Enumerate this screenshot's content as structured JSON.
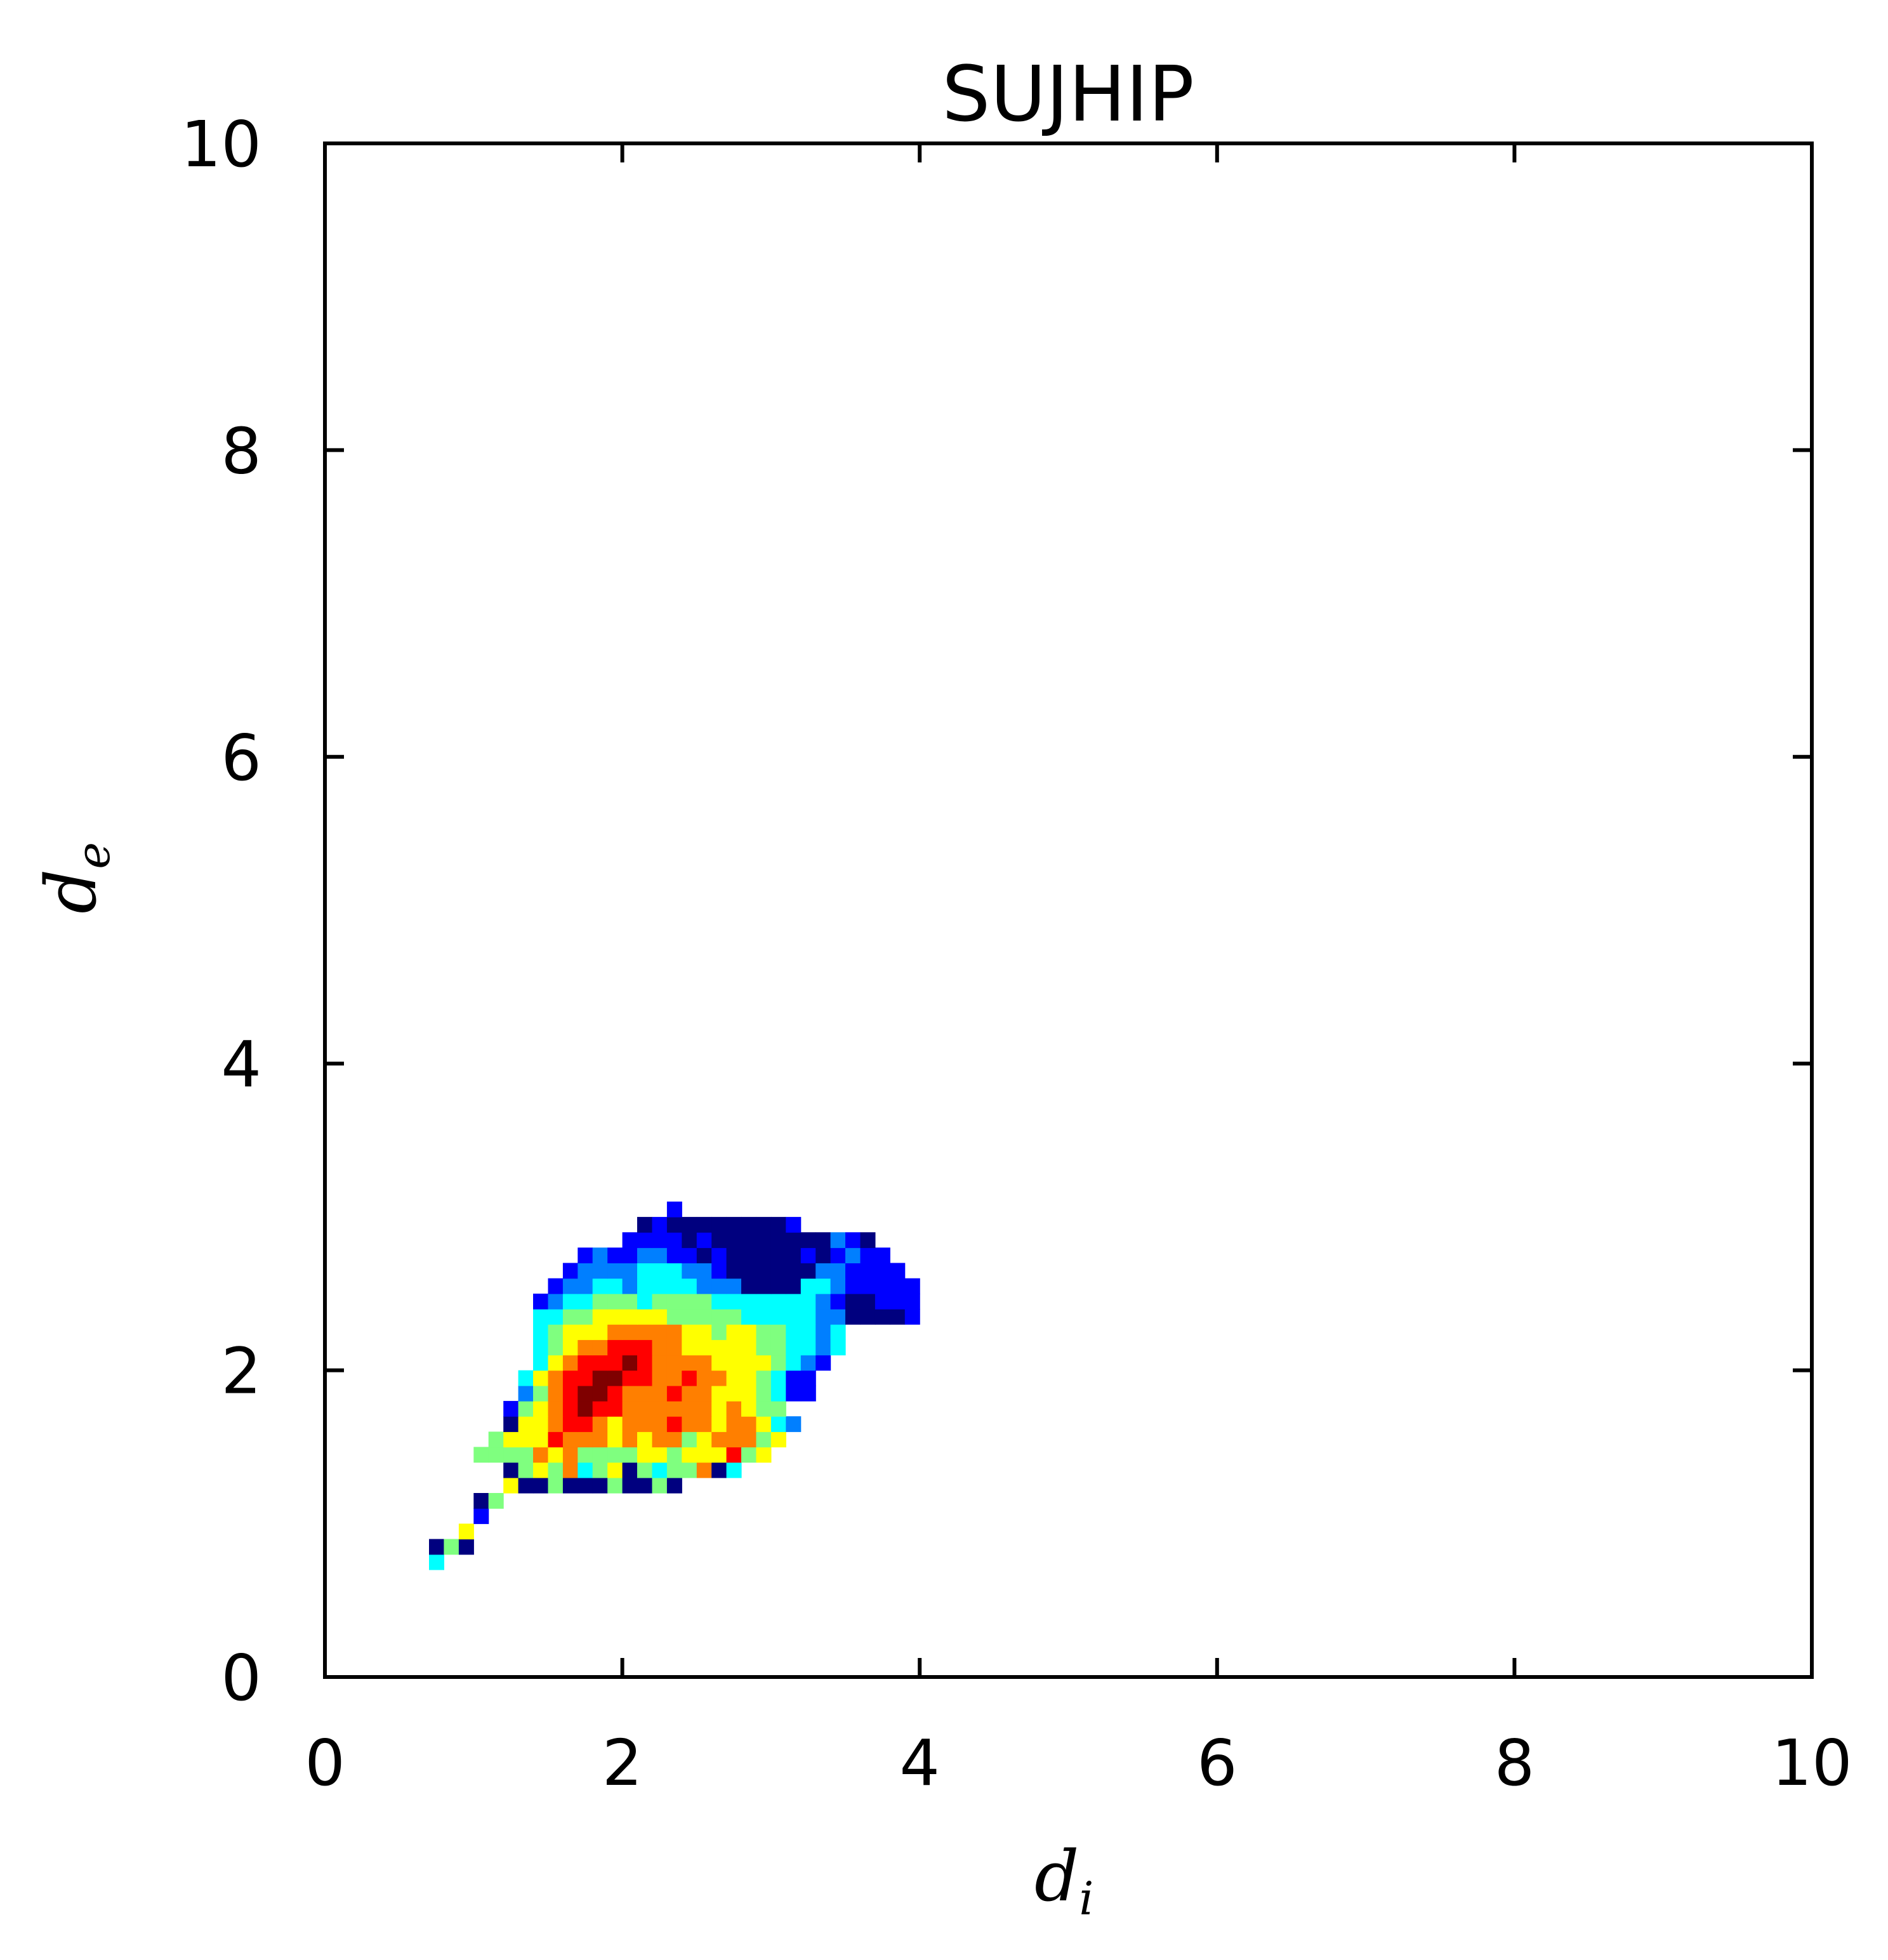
{
  "chart_data": {
    "type": "heatmap",
    "title": "SUJHIP",
    "xlabel": {
      "main": "d",
      "sub": "i"
    },
    "ylabel": {
      "main": "d",
      "sub": "e"
    },
    "xlim": [
      0,
      10
    ],
    "ylim": [
      0,
      10
    ],
    "xticks": [
      "0",
      "2",
      "4",
      "6",
      "8",
      "10"
    ],
    "yticks": [
      "0",
      "2",
      "4",
      "6",
      "8",
      "10"
    ],
    "bin_size": 0.1,
    "colormap": [
      "#00007f",
      "#0000ff",
      "#007fff",
      "#00ffff",
      "#7fff7f",
      "#ffff00",
      "#ff7f00",
      "#ff0000",
      "#7f0000"
    ],
    "rows": [
      {
        "y": 0.7,
        "x0": 0.7,
        "v": [
          3
        ]
      },
      {
        "y": 0.8,
        "x0": 0.7,
        "v": [
          0,
          4,
          0
        ]
      },
      {
        "y": 0.9,
        "x0": 0.9,
        "v": [
          5
        ]
      },
      {
        "y": 1.0,
        "x0": 1.0,
        "v": [
          1
        ]
      },
      {
        "y": 1.1,
        "x0": 1.0,
        "v": [
          0,
          4
        ]
      },
      {
        "y": 1.2,
        "x0": 1.2,
        "v": [
          5,
          0,
          0,
          4,
          0,
          0,
          0,
          4,
          0,
          0,
          4,
          0
        ]
      },
      {
        "y": 1.3,
        "x0": 1.2,
        "v": [
          0,
          4,
          5,
          4,
          6,
          3,
          4,
          5,
          0,
          4,
          3,
          4,
          4,
          6,
          0,
          3
        ]
      },
      {
        "y": 1.4,
        "x0": 1.0,
        "v": [
          4,
          4,
          4,
          4,
          6,
          5,
          6,
          4,
          4,
          4,
          4,
          5,
          5,
          4,
          5,
          5,
          5,
          7,
          4,
          5
        ]
      },
      {
        "y": 1.5,
        "x0": 1.1,
        "v": [
          4,
          5,
          5,
          5,
          7,
          6,
          6,
          6,
          5,
          6,
          5,
          6,
          6,
          4,
          5,
          6,
          6,
          6,
          4,
          5
        ]
      },
      {
        "y": 1.6,
        "x0": 1.2,
        "v": [
          0,
          5,
          5,
          6,
          7,
          7,
          6,
          5,
          6,
          6,
          6,
          7,
          6,
          6,
          5,
          6,
          6,
          5,
          3,
          2
        ]
      },
      {
        "y": 1.7,
        "x0": 1.2,
        "v": [
          1,
          4,
          5,
          6,
          7,
          8,
          7,
          7,
          6,
          6,
          6,
          6,
          6,
          6,
          5,
          6,
          5,
          4,
          4
        ]
      },
      {
        "y": 1.8,
        "x0": 1.3,
        "v": [
          2,
          4,
          6,
          7,
          8,
          8,
          7,
          6,
          6,
          6,
          7,
          6,
          6,
          5,
          5,
          5,
          4,
          3,
          1,
          1
        ]
      },
      {
        "y": 1.9,
        "x0": 1.3,
        "v": [
          3,
          5,
          6,
          7,
          7,
          8,
          8,
          7,
          7,
          6,
          6,
          7,
          6,
          6,
          5,
          5,
          4,
          3,
          1,
          1
        ]
      },
      {
        "y": 2.0,
        "x0": 1.4,
        "v": [
          3,
          5,
          6,
          7,
          7,
          7,
          8,
          7,
          6,
          6,
          6,
          6,
          5,
          5,
          5,
          5,
          4,
          3,
          2,
          1
        ]
      },
      {
        "y": 2.1,
        "x0": 1.4,
        "v": [
          3,
          4,
          5,
          6,
          6,
          7,
          7,
          7,
          6,
          6,
          5,
          5,
          5,
          5,
          5,
          4,
          4,
          3,
          3,
          2,
          3
        ]
      },
      {
        "y": 2.2,
        "x0": 1.4,
        "v": [
          3,
          4,
          5,
          5,
          5,
          6,
          6,
          6,
          6,
          6,
          5,
          5,
          4,
          5,
          5,
          4,
          4,
          3,
          3,
          2,
          3
        ]
      },
      {
        "y": 2.3,
        "x0": 1.4,
        "v": [
          3,
          3,
          4,
          4,
          5,
          5,
          5,
          5,
          5,
          4,
          4,
          4,
          4,
          4,
          3,
          3,
          3,
          3,
          3,
          2,
          2,
          0,
          0,
          0,
          0,
          1
        ]
      },
      {
        "y": 2.4,
        "x0": 1.4,
        "v": [
          1,
          2,
          3,
          3,
          4,
          4,
          4,
          3,
          4,
          4,
          4,
          4,
          3,
          3,
          3,
          3,
          3,
          3,
          3,
          2,
          1,
          0,
          0,
          1,
          1,
          1
        ]
      },
      {
        "y": 2.5,
        "x0": 1.5,
        "v": [
          1,
          2,
          2,
          3,
          3,
          2,
          3,
          3,
          3,
          3,
          2,
          2,
          2,
          0,
          0,
          0,
          0,
          3,
          3,
          2,
          1,
          1,
          1,
          1,
          1
        ]
      },
      {
        "y": 2.6,
        "x0": 1.6,
        "v": [
          1,
          2,
          2,
          2,
          2,
          3,
          3,
          3,
          2,
          2,
          1,
          0,
          0,
          0,
          0,
          0,
          0,
          2,
          2,
          1,
          1,
          1,
          1
        ]
      },
      {
        "y": 2.7,
        "x0": 1.7,
        "v": [
          1,
          2,
          1,
          1,
          2,
          2,
          1,
          1,
          0,
          1,
          0,
          0,
          0,
          0,
          0,
          1,
          0,
          1,
          2,
          1,
          1
        ]
      },
      {
        "y": 2.8,
        "x0": 2.0,
        "v": [
          1,
          1,
          1,
          1,
          0,
          1,
          0,
          0,
          0,
          0,
          0,
          0,
          0,
          0,
          2,
          1,
          0
        ]
      },
      {
        "y": 2.9,
        "x0": 2.1,
        "v": [
          0,
          1,
          0,
          0,
          0,
          0,
          0,
          0,
          0,
          0,
          1
        ]
      },
      {
        "y": 3.0,
        "x0": 2.3,
        "v": [
          1
        ]
      }
    ]
  }
}
